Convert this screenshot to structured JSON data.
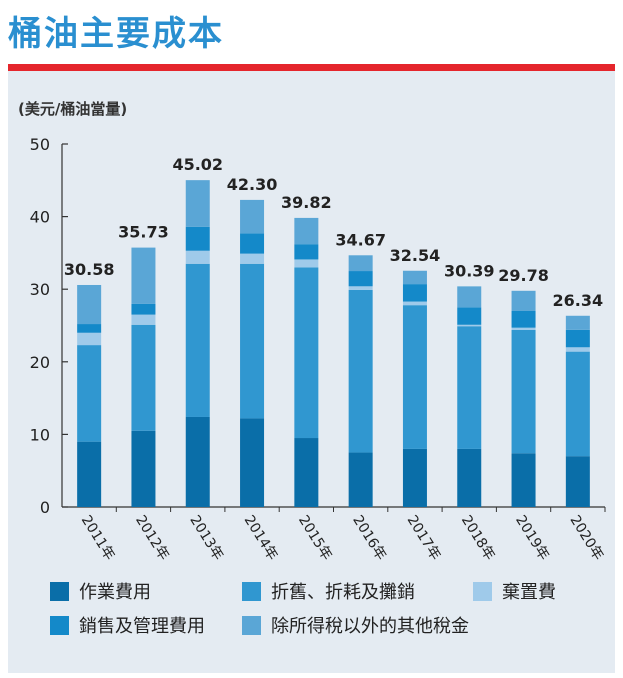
{
  "title": "桶油主要成本",
  "unit_label": "(美元/桶油當量)",
  "colors": {
    "title": "#2a8fd0",
    "rule": "#e5262c",
    "panel": "#e4ebf2",
    "s1": "#0a6ea8",
    "s2": "#3097d0",
    "s3": "#9fcaea",
    "s4": "#1489c9",
    "s5": "#5aa6d6"
  },
  "chart_data": {
    "type": "bar",
    "stacked": true,
    "categories": [
      "2011年",
      "2012年",
      "2013年",
      "2014年",
      "2015年",
      "2016年",
      "2017年",
      "2018年",
      "2019年",
      "2020年"
    ],
    "series": [
      {
        "name": "作業費用",
        "values": [
          9.0,
          10.5,
          12.4,
          12.2,
          9.5,
          7.5,
          8.0,
          8.0,
          7.4,
          7.0
        ]
      },
      {
        "name": "折舊、折耗及攤銷",
        "values": [
          13.3,
          14.6,
          21.1,
          21.3,
          23.5,
          22.4,
          19.8,
          16.9,
          17.0,
          14.4
        ]
      },
      {
        "name": "棄置費",
        "values": [
          1.7,
          1.4,
          1.8,
          1.4,
          1.1,
          0.5,
          0.5,
          0.2,
          0.3,
          0.6
        ]
      },
      {
        "name": "銷售及管理費用",
        "values": [
          1.2,
          1.5,
          3.3,
          2.8,
          2.1,
          2.1,
          2.4,
          2.4,
          2.3,
          2.4
        ]
      },
      {
        "name": "除所得稅以外的其他稅金",
        "values": [
          5.38,
          7.73,
          6.42,
          4.6,
          3.62,
          2.17,
          1.84,
          2.89,
          2.78,
          1.94
        ]
      }
    ],
    "totals": [
      "30.58",
      "35.73",
      "45.02",
      "42.30",
      "39.82",
      "34.67",
      "32.54",
      "30.39",
      "29.78",
      "26.34"
    ],
    "y_ticks": [
      "0",
      "10",
      "20",
      "30",
      "40",
      "50"
    ],
    "ylim": [
      0,
      50
    ],
    "grid": false,
    "legend_position": "bottom"
  }
}
